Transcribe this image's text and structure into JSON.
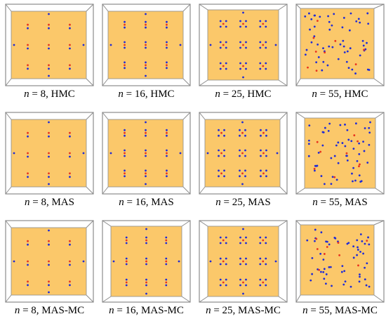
{
  "colors": {
    "panel": "#fbc86a",
    "frame": "#8c8c8c",
    "frame_fill": "#ffffff",
    "dot_blue": "#1f2bd6",
    "dot_red": "#e8321e",
    "text": "#000000"
  },
  "panels": [
    {
      "n_label": "n",
      "eq": " = 8, HMC",
      "pattern": "g3",
      "rot": 0
    },
    {
      "n_label": "n",
      "eq": " = 16, HMC",
      "pattern": "g4",
      "rot": 0
    },
    {
      "n_label": "n",
      "eq": " = 25, HMC",
      "pattern": "g5",
      "rot": 1
    },
    {
      "n_label": "n",
      "eq": " = 55, HMC",
      "pattern": "rand",
      "rot": 2
    },
    {
      "n_label": "n",
      "eq": " = 8, MAS",
      "pattern": "g3",
      "rot": 0
    },
    {
      "n_label": "n",
      "eq": " = 16, MAS",
      "pattern": "g4",
      "rot": 0
    },
    {
      "n_label": "n",
      "eq": " = 25, MAS",
      "pattern": "g5",
      "rot": 0
    },
    {
      "n_label": "n",
      "eq": " = 55, MAS",
      "pattern": "rand",
      "rot": 1
    },
    {
      "n_label": "n",
      "eq": " = 8, MAS-MC",
      "pattern": "g3",
      "rot": 0
    },
    {
      "n_label": "n",
      "eq": " = 16, MAS-MC",
      "pattern": "g4",
      "rot": 1
    },
    {
      "n_label": "n",
      "eq": " = 25, MAS-MC",
      "pattern": "g5",
      "rot": 1
    },
    {
      "n_label": "n",
      "eq": " = 55, MAS-MC",
      "pattern": "rand",
      "rot": 2
    }
  ]
}
